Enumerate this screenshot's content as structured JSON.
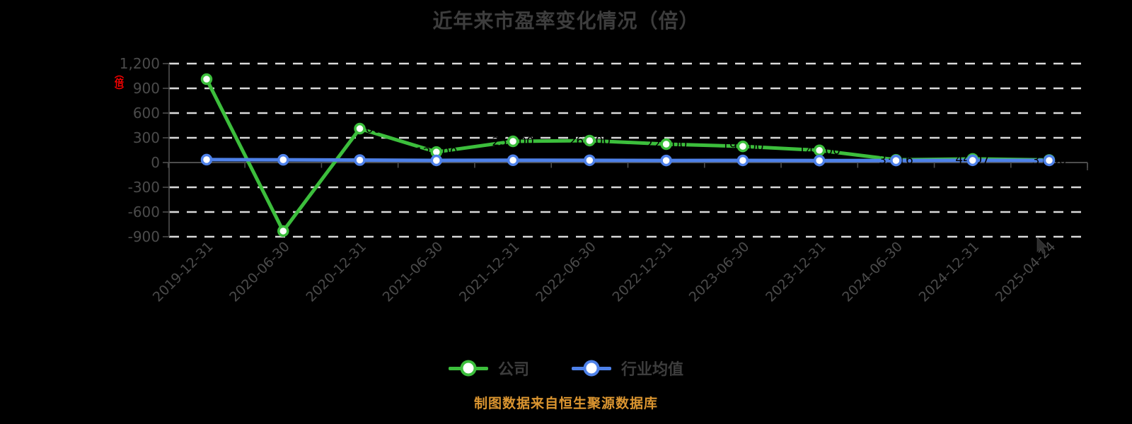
{
  "title": "近年来市盈率变化情况（倍）",
  "y_axis_unit_label": "（倍）",
  "footer": {
    "text": "制图数据来自恒生聚源数据库"
  },
  "legend": {
    "items": [
      {
        "label": "公司"
      },
      {
        "label": "行业均值"
      }
    ]
  },
  "colors": {
    "background": "#000000",
    "company_series": "#3CBE3C",
    "industry_series": "#4E81E9",
    "gridline": "#D9D9D9",
    "axis": "#4D4D4D",
    "axis_text": "#4B4B4B",
    "title_text": "#3D3D3D",
    "legend_text": "#3D3D3D",
    "footer_text": "#DB9530",
    "unit_label_red": "#FF0000",
    "data_label": "#000000",
    "marker_fill": "#FFFFFF"
  },
  "chart_data": {
    "type": "line",
    "title": "近年来市盈率变化情况（倍）",
    "categories": [
      "2019-12-31",
      "2020-06-30",
      "2020-12-31",
      "2021-06-30",
      "2021-12-31",
      "2022-06-30",
      "2022-12-31",
      "2023-06-30",
      "2023-12-31",
      "2024-06-30",
      "2024-12-31",
      "2025-04-24"
    ],
    "series": [
      {
        "name": "公司",
        "color": "#3CBE3C",
        "values": [
          1011,
          -831,
          411,
          128,
          257,
          266,
          223,
          196,
          148,
          33.16,
          44.07,
          31.06
        ],
        "show_labels": true
      },
      {
        "name": "行业均值",
        "color": "#4E81E9",
        "values": [
          35,
          33,
          30,
          26,
          28,
          27,
          25,
          26,
          24,
          25,
          27,
          26
        ],
        "show_labels": false
      }
    ],
    "ylim": [
      -900,
      1200
    ],
    "yticks": [
      1200,
      900,
      600,
      300,
      0,
      -300,
      -600,
      -900
    ],
    "ytick_labels": [
      "1,200",
      "900",
      "600",
      "300",
      "0",
      "-300",
      "-600",
      "-900"
    ],
    "grid": "horizontal dashed",
    "legend_position": "bottom center",
    "xlabel": "",
    "ylabel": "（倍）"
  }
}
